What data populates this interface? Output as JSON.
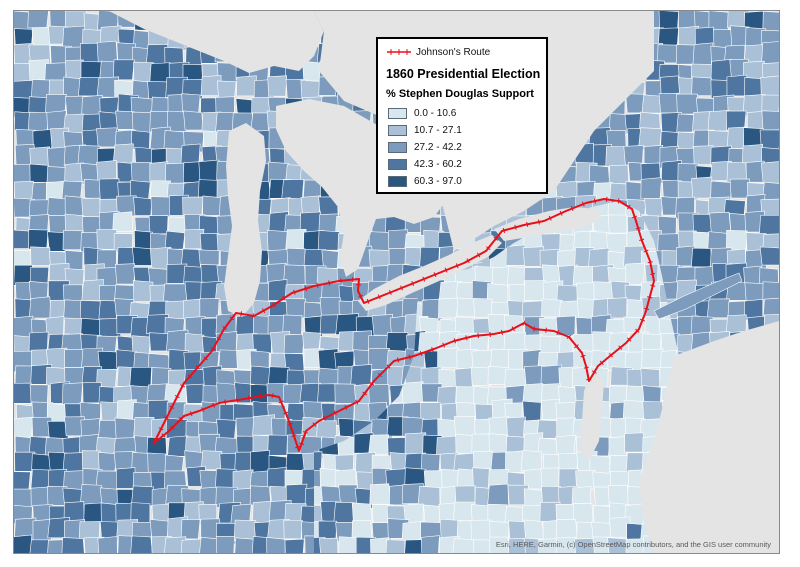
{
  "legend": {
    "route_label": "Johnson's Route",
    "title": "1860 Presidential Election",
    "subtitle": "% Stephen Douglas Support",
    "classes": [
      {
        "label": "0.0 - 10.6",
        "color": "#d8e6ee"
      },
      {
        "label": "10.7 - 27.1",
        "color": "#a9c0d6"
      },
      {
        "label": "27.2 - 42.2",
        "color": "#7c9bbd"
      },
      {
        "label": "42.3 - 60.2",
        "color": "#4f76a0"
      },
      {
        "label": "60.3 - 97.0",
        "color": "#2a5782"
      }
    ]
  },
  "colors": {
    "route": "#e8101a",
    "water": "#e4e4e4",
    "county_border": "#ffffff",
    "frame": "#8a8a8a"
  },
  "attribution": "Esri, HERE, Garmin, (c) OpenStreetMap contributors, and the GIS user community"
}
